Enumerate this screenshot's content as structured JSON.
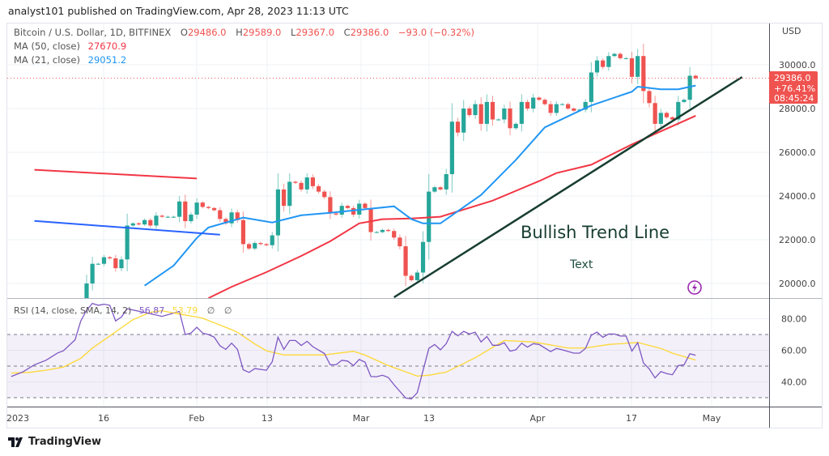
{
  "header": {
    "published": "analyst101 published on TradingView.com, Apr 28, 2023 11:13 UTC"
  },
  "legend": {
    "symbol": "Bitcoin / U.S. Dollar, 1D, BITFINEX",
    "o_label": "O",
    "o": "29486.0",
    "h_label": "H",
    "h": "29589.0",
    "l_label": "L",
    "l": "29367.0",
    "c_label": "C",
    "c": "29386.0",
    "change": "−93.0 (−0.32%)",
    "ma50_label": "MA (50, close)",
    "ma50_value": "27670.9",
    "ma21_label": "MA (21, close)",
    "ma21_value": "29051.2",
    "rsi_label": "RSI (14, close, SMA, 14, 2)",
    "rsi_value": "56.87",
    "rsi_sma_value": "53.79",
    "null1": "∅",
    "null2": "∅"
  },
  "price_axis": {
    "currency": "USD",
    "ticks": [
      "30000.0",
      "28000.0",
      "26000.0",
      "24000.0",
      "22000.0",
      "20000.0"
    ],
    "last_price": "29386.0",
    "last_change": "+76.41%",
    "countdown": "08:45:24"
  },
  "rsi_axis": {
    "ticks": [
      "80.00",
      "60.00",
      "40.00"
    ]
  },
  "time_axis": {
    "ticks": [
      "2023",
      "16",
      "Feb",
      "13",
      "Mar",
      "13",
      "Apr",
      "17",
      "May"
    ]
  },
  "annotations": {
    "trend_label": "Bullish Trend Line",
    "text_label": "Text"
  },
  "footer": {
    "brand": "TradingView"
  },
  "colors": {
    "up": "#26a69a",
    "down": "#ef5350",
    "ma50": "#f23645",
    "ma21": "#2196f3",
    "rsi": "#7e57c2",
    "rsi_sma": "#fdd835",
    "trendline": "#173d30",
    "resistance": "#f23645",
    "support": "#2962ff",
    "icon": "#9c27b0"
  },
  "icons": {
    "lightning": "lightning-icon",
    "logo": "tradingview-logo-icon"
  },
  "chart_data": {
    "type": "candlestick",
    "price_range": [
      19300,
      31000
    ],
    "rsi_range": [
      25,
      92
    ],
    "rsi_bands": [
      70,
      50,
      30
    ],
    "candles_start": "2023-01-13",
    "first_open": 18850,
    "closes": [
      20000,
      20900,
      20900,
      21200,
      21150,
      20700,
      21100,
      22650,
      22750,
      22700,
      22900,
      22650,
      23100,
      23050,
      23050,
      23050,
      23750,
      22850,
      23150,
      23700,
      23500,
      23450,
      23350,
      22950,
      22750,
      23250,
      22900,
      21800,
      21600,
      21850,
      21800,
      21750,
      22200,
      24300,
      23550,
      24650,
      24600,
      24300,
      24850,
      24450,
      24200,
      23950,
      23200,
      23150,
      23550,
      23450,
      23150,
      23650,
      23450,
      22350,
      22350,
      22450,
      22400,
      22100,
      21700,
      20350,
      20150,
      20500,
      21900,
      24200,
      24400,
      24300,
      25000,
      27400,
      26900,
      28000,
      27700,
      28200,
      27300,
      28300,
      27500,
      27500,
      28000,
      27100,
      27300,
      28300,
      28000,
      28500,
      28400,
      28200,
      27800,
      28200,
      28200,
      28000,
      27900,
      27950,
      28300,
      29650,
      30200,
      29900,
      30400,
      30500,
      30300,
      30300,
      29450,
      30400,
      28800,
      28250,
      27300,
      27800,
      27600,
      27500,
      28300,
      28400,
      29500,
      29386
    ],
    "ma21": [
      [
        "2023-01-23",
        19900
      ],
      [
        "2023-01-28",
        20820
      ],
      [
        "2023-02-01",
        22080
      ],
      [
        "2023-02-03",
        22560
      ],
      [
        "2023-02-09",
        23010
      ],
      [
        "2023-02-14",
        22790
      ],
      [
        "2023-02-19",
        23120
      ],
      [
        "2023-02-24",
        23230
      ],
      [
        "2023-03-07",
        23530
      ],
      [
        "2023-03-10",
        22940
      ],
      [
        "2023-03-12",
        22750
      ],
      [
        "2023-03-15",
        22750
      ],
      [
        "2023-03-22",
        24050
      ],
      [
        "2023-03-28",
        25650
      ],
      [
        "2023-04-02",
        27140
      ],
      [
        "2023-04-07",
        27770
      ],
      [
        "2023-04-10",
        28140
      ],
      [
        "2023-04-17",
        28770
      ],
      [
        "2023-04-18",
        29000
      ],
      [
        "2023-04-22",
        28880
      ],
      [
        "2023-04-25",
        28880
      ],
      [
        "2023-04-28",
        29051
      ]
    ],
    "ma50": [
      [
        "2023-02-03",
        19330
      ],
      [
        "2023-02-07",
        19850
      ],
      [
        "2023-02-13",
        20520
      ],
      [
        "2023-02-19",
        21260
      ],
      [
        "2023-02-24",
        21930
      ],
      [
        "2023-03-01",
        22750
      ],
      [
        "2023-03-05",
        22940
      ],
      [
        "2023-03-10",
        22970
      ],
      [
        "2023-03-15",
        23050
      ],
      [
        "2023-03-24",
        23790
      ],
      [
        "2023-04-01",
        24680
      ],
      [
        "2023-04-04",
        25050
      ],
      [
        "2023-04-10",
        25430
      ],
      [
        "2023-04-17",
        26360
      ],
      [
        "2023-04-21",
        26840
      ],
      [
        "2023-04-28",
        27671
      ]
    ],
    "drawn_lines": [
      {
        "role": "resistance",
        "from": [
          "2023-01-04",
          25200
        ],
        "to": [
          "2023-02-01",
          24800
        ]
      },
      {
        "role": "support",
        "from": [
          "2023-01-04",
          22860
        ],
        "to": [
          "2023-02-05",
          22230
        ]
      },
      {
        "role": "trendline",
        "from": [
          "2023-03-07",
          19370
        ],
        "to": [
          "2023-05-06",
          29440
        ]
      }
    ],
    "rsi": [
      [
        "2022-12-31",
        43.4
      ],
      [
        "2023-01-02",
        46.3
      ],
      [
        "2023-01-04",
        50.8
      ],
      [
        "2023-01-06",
        53.7
      ],
      [
        "2023-01-08",
        58.3
      ],
      [
        "2023-01-09",
        59.7
      ],
      [
        "2023-01-11",
        66.6
      ],
      [
        "2023-01-12",
        78.6
      ],
      [
        "2023-01-13",
        85.4
      ],
      [
        "2023-01-14",
        89.7
      ],
      [
        "2023-01-15",
        88.5
      ],
      [
        "2023-01-16",
        89.2
      ],
      [
        "2023-01-17",
        88.5
      ],
      [
        "2023-01-18",
        78.6
      ],
      [
        "2023-01-19",
        81.1
      ],
      [
        "2023-01-20",
        86.3
      ],
      [
        "2023-01-23",
        84
      ],
      [
        "2023-01-26",
        81.5
      ],
      [
        "2023-01-29",
        84.6
      ],
      [
        "2023-01-30",
        70
      ],
      [
        "2023-01-31",
        70.9
      ],
      [
        "2023-02-01",
        74.6
      ],
      [
        "2023-02-02",
        70.9
      ],
      [
        "2023-02-03",
        70
      ],
      [
        "2023-02-04",
        68.3
      ],
      [
        "2023-02-05",
        62.8
      ],
      [
        "2023-02-06",
        60.6
      ],
      [
        "2023-02-07",
        64.5
      ],
      [
        "2023-02-08",
        60.6
      ],
      [
        "2023-02-09",
        47.7
      ],
      [
        "2023-02-10",
        46
      ],
      [
        "2023-02-11",
        48.4
      ],
      [
        "2023-02-13",
        47.4
      ],
      [
        "2023-02-14",
        52.8
      ],
      [
        "2023-02-15",
        68.3
      ],
      [
        "2023-02-16",
        60.6
      ],
      [
        "2023-02-17",
        66.2
      ],
      [
        "2023-02-18",
        66.2
      ],
      [
        "2023-02-19",
        63.1
      ],
      [
        "2023-02-20",
        65.7
      ],
      [
        "2023-02-21",
        62.3
      ],
      [
        "2023-02-23",
        58
      ],
      [
        "2023-02-24",
        50.8
      ],
      [
        "2023-02-25",
        50.8
      ],
      [
        "2023-02-26",
        53.7
      ],
      [
        "2023-02-27",
        53.2
      ],
      [
        "2023-02-28",
        50.3
      ],
      [
        "2023-03-01",
        54.2
      ],
      [
        "2023-03-02",
        52.5
      ],
      [
        "2023-03-03",
        43.4
      ],
      [
        "2023-03-04",
        43.3
      ],
      [
        "2023-03-05",
        44.2
      ],
      [
        "2023-03-06",
        42.8
      ],
      [
        "2023-03-07",
        38.2
      ],
      [
        "2023-03-09",
        29.8
      ],
      [
        "2023-03-10",
        29.2
      ],
      [
        "2023-03-11",
        33.2
      ],
      [
        "2023-03-13",
        61.2
      ],
      [
        "2023-03-14",
        63.7
      ],
      [
        "2023-03-15",
        60.3
      ],
      [
        "2023-03-16",
        64.2
      ],
      [
        "2023-03-17",
        72
      ],
      [
        "2023-03-18",
        69.2
      ],
      [
        "2023-03-19",
        72
      ],
      [
        "2023-03-20",
        70.3
      ],
      [
        "2023-03-21",
        71.5
      ],
      [
        "2023-03-22",
        65.3
      ],
      [
        "2023-03-23",
        68.7
      ],
      [
        "2023-03-24",
        63.2
      ],
      [
        "2023-03-25",
        63.2
      ],
      [
        "2023-03-26",
        64.8
      ],
      [
        "2023-03-27",
        59.5
      ],
      [
        "2023-03-28",
        60.3
      ],
      [
        "2023-03-29",
        64.5
      ],
      [
        "2023-03-30",
        62
      ],
      [
        "2023-03-31",
        64.2
      ],
      [
        "2023-04-01",
        63.7
      ],
      [
        "2023-04-03",
        59.2
      ],
      [
        "2023-04-04",
        61.2
      ],
      [
        "2023-04-05",
        60.3
      ],
      [
        "2023-04-07",
        58.2
      ],
      [
        "2023-04-08",
        58.2
      ],
      [
        "2023-04-09",
        61.2
      ],
      [
        "2023-04-10",
        69.5
      ],
      [
        "2023-04-11",
        71.5
      ],
      [
        "2023-04-12",
        68.2
      ],
      [
        "2023-04-13",
        70.3
      ],
      [
        "2023-04-14",
        70.3
      ],
      [
        "2023-04-15",
        69
      ],
      [
        "2023-04-16",
        69
      ],
      [
        "2023-04-17",
        59.5
      ],
      [
        "2023-04-18",
        64.8
      ],
      [
        "2023-04-19",
        52
      ],
      [
        "2023-04-20",
        48.2
      ],
      [
        "2023-04-21",
        42.5
      ],
      [
        "2023-04-22",
        46.5
      ],
      [
        "2023-04-23",
        45.3
      ],
      [
        "2023-04-24",
        44.5
      ],
      [
        "2023-04-25",
        50.3
      ],
      [
        "2023-04-26",
        50.8
      ],
      [
        "2023-04-27",
        57.8
      ],
      [
        "2023-04-28",
        56.87
      ]
    ],
    "rsi_sma": [
      [
        "2022-12-31",
        45.6
      ],
      [
        "2023-01-03",
        46
      ],
      [
        "2023-01-06",
        47.4
      ],
      [
        "2023-01-09",
        49.4
      ],
      [
        "2023-01-12",
        54.9
      ],
      [
        "2023-01-14",
        61.4
      ],
      [
        "2023-01-17",
        69.1
      ],
      [
        "2023-01-19",
        74.3
      ],
      [
        "2023-01-21",
        79.4
      ],
      [
        "2023-01-24",
        84.1
      ],
      [
        "2023-01-26",
        85.1
      ],
      [
        "2023-01-29",
        82.9
      ],
      [
        "2023-02-01",
        81.1
      ],
      [
        "2023-02-02",
        80.3
      ],
      [
        "2023-02-07",
        73.1
      ],
      [
        "2023-02-08",
        71.4
      ],
      [
        "2023-02-11",
        64
      ],
      [
        "2023-02-13",
        59.7
      ],
      [
        "2023-02-16",
        57.1
      ],
      [
        "2023-02-23",
        57.1
      ],
      [
        "2023-02-28",
        59.4
      ],
      [
        "2023-03-02",
        57
      ],
      [
        "2023-03-06",
        50.3
      ],
      [
        "2023-03-11",
        43.7
      ],
      [
        "2023-03-13",
        44.2
      ],
      [
        "2023-03-16",
        46.2
      ],
      [
        "2023-03-21",
        55.3
      ],
      [
        "2023-03-26",
        66.2
      ],
      [
        "2023-03-31",
        65.3
      ],
      [
        "2023-04-06",
        61.5
      ],
      [
        "2023-04-09",
        61.5
      ],
      [
        "2023-04-13",
        63.7
      ],
      [
        "2023-04-18",
        65
      ],
      [
        "2023-04-22",
        61.2
      ],
      [
        "2023-04-24",
        58.2
      ],
      [
        "2023-04-28",
        53.79
      ]
    ]
  }
}
